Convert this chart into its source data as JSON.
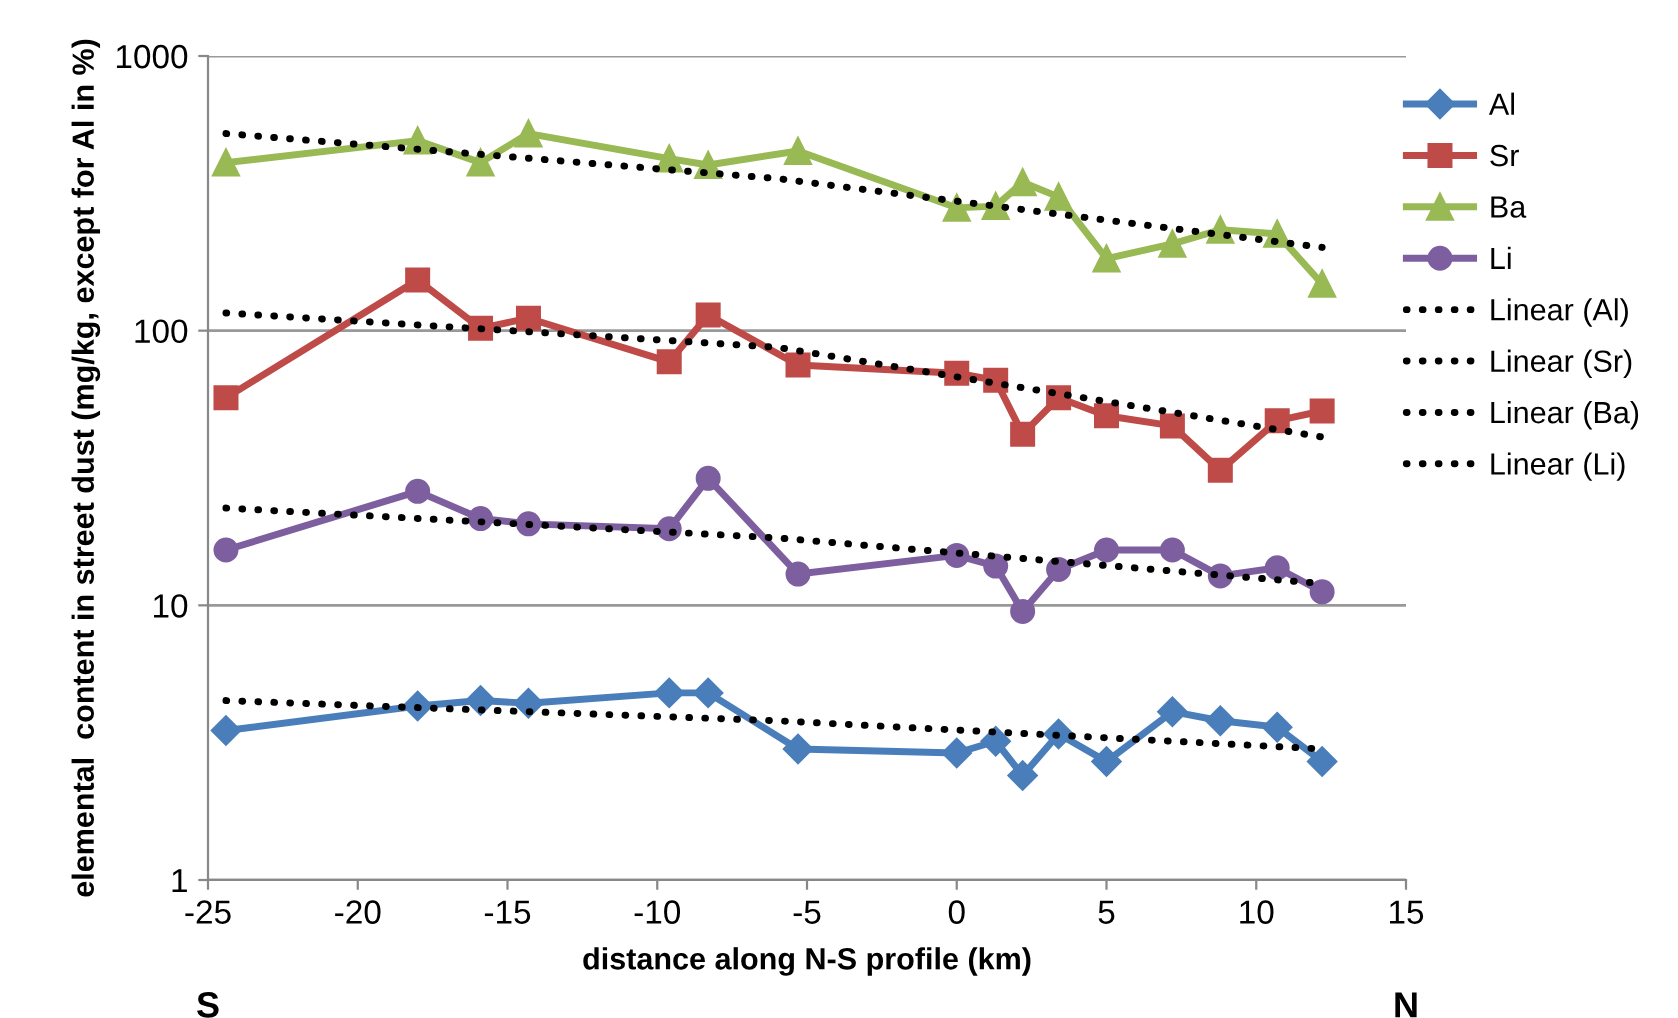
{
  "chart_data": {
    "type": "line",
    "ylabel": "elemental  content in street dust (mg/kg, except for Al in %)",
    "xlabel": "distance along N-S profile (km)",
    "x": [
      -24.4,
      -18,
      -15.9,
      -14.3,
      -9.6,
      -8.3,
      -5.3,
      0,
      1.3,
      2.2,
      3.4,
      5,
      7.2,
      8.8,
      10.7,
      12.2
    ],
    "series": [
      {
        "name": "Al",
        "color": "#4a7ebb",
        "marker": "diamond",
        "line_style": "solid",
        "values": [
          3.5,
          4.3,
          4.5,
          4.4,
          4.8,
          4.8,
          3.0,
          2.9,
          3.2,
          2.4,
          3.4,
          2.7,
          4.1,
          3.8,
          3.6,
          2.7
        ]
      },
      {
        "name": "Sr",
        "color": "#be4b48",
        "marker": "square",
        "line_style": "solid",
        "values": [
          57,
          153,
          102,
          111,
          77,
          114,
          75,
          70,
          66,
          42,
          57,
          49,
          45,
          31,
          47,
          51
        ]
      },
      {
        "name": "Ba",
        "color": "#98b954",
        "marker": "triangle",
        "line_style": "solid",
        "values": [
          409,
          492,
          409,
          522,
          423,
          401,
          451,
          280,
          284,
          347,
          307,
          183,
          207,
          233,
          225,
          148
        ]
      },
      {
        "name": "Li",
        "color": "#7d5fa0",
        "marker": "circle",
        "line_style": "solid",
        "values": [
          15.9,
          26,
          20.7,
          19.8,
          19.0,
          29,
          13.0,
          15.2,
          13.9,
          9.5,
          13.5,
          15.9,
          15.9,
          12.8,
          13.7,
          11.2
        ]
      },
      {
        "name": "Linear (Al)",
        "color": "#000000",
        "marker": "none",
        "line_style": "dotted",
        "x": [
          -24.4,
          -6,
          12.2
        ],
        "values": [
          4.5,
          3.8,
          3.0
        ]
      },
      {
        "name": "Linear (Sr)",
        "color": "#000000",
        "marker": "none",
        "line_style": "dotted",
        "x": [
          -24.4,
          -6,
          12.2
        ],
        "values": [
          116,
          87,
          41
        ]
      },
      {
        "name": "Linear (Ba)",
        "color": "#000000",
        "marker": "none",
        "line_style": "dotted",
        "x": [
          -24.4,
          -6,
          12.2
        ],
        "values": [
          522,
          358,
          201
        ]
      },
      {
        "name": "Linear (Li)",
        "color": "#000000",
        "marker": "none",
        "line_style": "dotted",
        "x": [
          -24.4,
          -6,
          12.2
        ],
        "values": [
          22.6,
          17.6,
          12.0
        ]
      }
    ],
    "log": "y",
    "xlim": [
      -25,
      15
    ],
    "xticks": [
      -25,
      -20,
      -15,
      -10,
      -5,
      0,
      5,
      10,
      15
    ],
    "ylim": [
      1,
      1000
    ],
    "yticks": [
      1,
      10,
      100,
      1000
    ],
    "grid": "y",
    "legend": "right",
    "annotations": [
      "S",
      "N"
    ]
  }
}
